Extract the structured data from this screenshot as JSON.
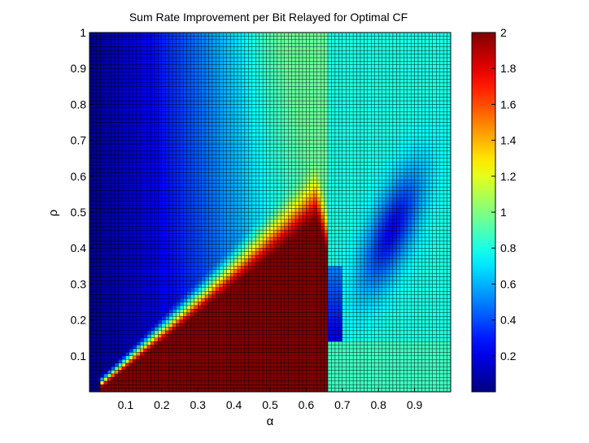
{
  "chart_data": {
    "type": "heatmap",
    "title": "Sum Rate Improvement per Bit Relayed for Optimal CF",
    "xlabel": "α",
    "ylabel": "ρ",
    "xlim": [
      0,
      1
    ],
    "ylim": [
      0,
      1
    ],
    "x_ticks": [
      "0.1",
      "0.2",
      "0.3",
      "0.4",
      "0.5",
      "0.6",
      "0.7",
      "0.8",
      "0.9"
    ],
    "y_ticks": [
      "0.1",
      "0.2",
      "0.3",
      "0.4",
      "0.5",
      "0.6",
      "0.7",
      "0.8",
      "0.9",
      "1"
    ],
    "colorbar": {
      "colormap": "jet",
      "range": [
        0,
        2
      ],
      "ticks": [
        "0.2",
        "0.4",
        "0.6",
        "0.8",
        "1",
        "1.2",
        "1.4",
        "1.6",
        "1.8",
        "2"
      ]
    },
    "grid": {
      "nx": 100,
      "ny": 100,
      "cell_edge_color": "#000000",
      "boundary_alpha": 0.665,
      "value_right_region": 0.87,
      "value_dark_triangle": 2.0,
      "value_top_left": 0.02,
      "triangle_apex": [
        0.52,
        0.5
      ],
      "value_at_right_edge_top": 0.78
    }
  }
}
